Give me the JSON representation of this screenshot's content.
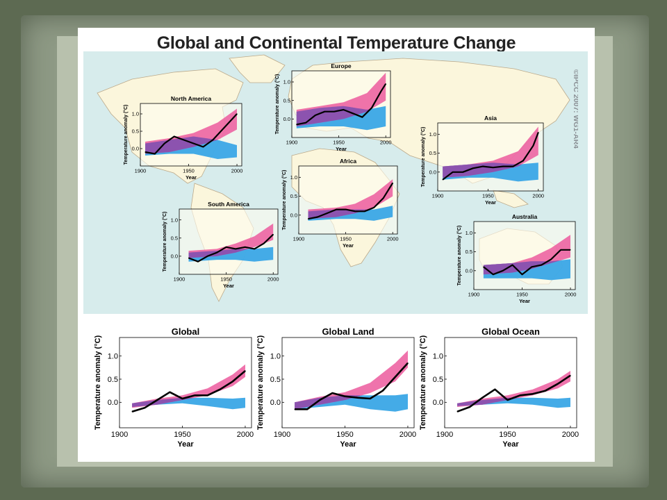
{
  "slide": {
    "title": "Global and Continental Temperature Change",
    "copyright": "©IPCC  2007: WG1-AR4"
  },
  "colors": {
    "natural": "#3aa7e6",
    "anthropogenic": "#ec5a9e",
    "observed": "#000000",
    "map_sea": "#d7ecec",
    "map_land": "#fbf6dc"
  },
  "chart_data": [
    {
      "id": "north-america",
      "type": "line",
      "title": "North America",
      "xlabel": "Year",
      "ylabel": "Temperature anomaly (°C)",
      "xlim": [
        1900,
        2005
      ],
      "ylim": [
        -0.5,
        1.3
      ],
      "yticks": [
        0.0,
        0.5,
        1.0
      ],
      "xticks": [
        1900,
        1950,
        2000
      ],
      "x": [
        1905,
        1915,
        1925,
        1935,
        1945,
        1955,
        1965,
        1975,
        1985,
        1995,
        2000
      ],
      "series": [
        {
          "name": "observed",
          "values": [
            -0.1,
            -0.15,
            0.15,
            0.35,
            0.25,
            0.15,
            0.05,
            0.25,
            0.55,
            0.85,
            1.0
          ]
        }
      ],
      "natural_band": {
        "x": [
          1905,
          1930,
          1955,
          1980,
          2000
        ],
        "lower": [
          -0.2,
          -0.15,
          -0.15,
          -0.3,
          -0.25
        ],
        "upper": [
          0.15,
          0.25,
          0.35,
          0.25,
          0.1
        ]
      },
      "anthropogenic_band": {
        "x": [
          1905,
          1930,
          1955,
          1980,
          2000
        ],
        "lower": [
          -0.15,
          -0.1,
          0.05,
          0.25,
          0.55
        ],
        "upper": [
          0.2,
          0.3,
          0.45,
          0.75,
          1.15
        ]
      }
    },
    {
      "id": "europe",
      "type": "line",
      "title": "Europe",
      "xlabel": "Year",
      "ylabel": "Temperature anomaly (°C)",
      "xlim": [
        1900,
        2005
      ],
      "ylim": [
        -0.5,
        1.3
      ],
      "yticks": [
        0.0,
        0.5,
        1.0
      ],
      "xticks": [
        1900,
        1950,
        2000
      ],
      "x": [
        1905,
        1915,
        1925,
        1935,
        1945,
        1955,
        1965,
        1975,
        1985,
        1995,
        2000
      ],
      "series": [
        {
          "name": "observed",
          "values": [
            -0.15,
            -0.1,
            0.1,
            0.2,
            0.2,
            0.25,
            0.15,
            0.05,
            0.3,
            0.75,
            0.95
          ]
        }
      ],
      "natural_band": {
        "x": [
          1905,
          1930,
          1955,
          1980,
          2000
        ],
        "lower": [
          -0.25,
          -0.2,
          -0.2,
          -0.3,
          -0.2
        ],
        "upper": [
          0.2,
          0.3,
          0.35,
          0.25,
          0.35
        ]
      },
      "anthropogenic_band": {
        "x": [
          1905,
          1930,
          1955,
          1980,
          2000
        ],
        "lower": [
          -0.2,
          -0.1,
          0.0,
          0.2,
          0.5
        ],
        "upper": [
          0.25,
          0.35,
          0.45,
          0.7,
          1.25
        ]
      }
    },
    {
      "id": "asia",
      "type": "line",
      "title": "Asia",
      "xlabel": "Year",
      "ylabel": "Temperature anomaly (°C)",
      "xlim": [
        1900,
        2005
      ],
      "ylim": [
        -0.5,
        1.3
      ],
      "yticks": [
        0.0,
        0.5,
        1.0
      ],
      "xticks": [
        1900,
        1950,
        2000
      ],
      "x": [
        1905,
        1915,
        1925,
        1935,
        1945,
        1955,
        1965,
        1975,
        1985,
        1995,
        2000
      ],
      "series": [
        {
          "name": "observed",
          "values": [
            -0.2,
            0.0,
            0.0,
            0.1,
            0.15,
            0.12,
            0.15,
            0.15,
            0.3,
            0.7,
            1.05
          ]
        }
      ],
      "natural_band": {
        "x": [
          1905,
          1930,
          1955,
          1980,
          2000
        ],
        "lower": [
          -0.2,
          -0.15,
          -0.15,
          -0.25,
          -0.2
        ],
        "upper": [
          0.15,
          0.2,
          0.25,
          0.2,
          0.25
        ]
      },
      "anthropogenic_band": {
        "x": [
          1905,
          1930,
          1955,
          1980,
          2000
        ],
        "lower": [
          -0.15,
          -0.1,
          0.0,
          0.15,
          0.45
        ],
        "upper": [
          0.15,
          0.2,
          0.3,
          0.55,
          1.2
        ]
      }
    },
    {
      "id": "africa",
      "type": "line",
      "title": "Africa",
      "xlabel": "Year",
      "ylabel": "Temperature anomaly (°C)",
      "xlim": [
        1900,
        2005
      ],
      "ylim": [
        -0.5,
        1.3
      ],
      "yticks": [
        0.0,
        0.5,
        1.0
      ],
      "xticks": [
        1900,
        1950,
        2000
      ],
      "x": [
        1910,
        1920,
        1930,
        1940,
        1950,
        1960,
        1970,
        1980,
        1990,
        2000
      ],
      "series": [
        {
          "name": "observed",
          "values": [
            -0.1,
            -0.05,
            0.05,
            0.15,
            0.15,
            0.1,
            0.1,
            0.2,
            0.45,
            0.85
          ]
        }
      ],
      "natural_band": {
        "x": [
          1910,
          1940,
          1960,
          1980,
          2000
        ],
        "lower": [
          -0.15,
          -0.1,
          -0.1,
          -0.15,
          -0.05
        ],
        "upper": [
          0.1,
          0.15,
          0.15,
          0.15,
          0.25
        ]
      },
      "anthropogenic_band": {
        "x": [
          1910,
          1940,
          1960,
          1980,
          2000
        ],
        "lower": [
          -0.1,
          -0.05,
          0.05,
          0.2,
          0.5
        ],
        "upper": [
          0.15,
          0.2,
          0.3,
          0.55,
          0.95
        ]
      }
    },
    {
      "id": "south-america",
      "type": "line",
      "title": "South America",
      "xlabel": "Year",
      "ylabel": "Temperature anomaly (°C)",
      "xlim": [
        1900,
        2005
      ],
      "ylim": [
        -0.5,
        1.3
      ],
      "yticks": [
        0.0,
        0.5,
        1.0
      ],
      "xticks": [
        1900,
        1950,
        2000
      ],
      "x": [
        1910,
        1920,
        1930,
        1940,
        1950,
        1960,
        1970,
        1980,
        1990,
        2000
      ],
      "series": [
        {
          "name": "observed",
          "values": [
            -0.05,
            -0.15,
            0.0,
            0.1,
            0.25,
            0.2,
            0.25,
            0.2,
            0.35,
            0.6
          ]
        }
      ],
      "natural_band": {
        "x": [
          1910,
          1940,
          1960,
          1980,
          2000
        ],
        "lower": [
          -0.15,
          -0.1,
          -0.1,
          -0.15,
          -0.1
        ],
        "upper": [
          0.1,
          0.15,
          0.2,
          0.2,
          0.25
        ]
      },
      "anthropogenic_band": {
        "x": [
          1910,
          1940,
          1960,
          1980,
          2000
        ],
        "lower": [
          -0.05,
          0.0,
          0.1,
          0.25,
          0.45
        ],
        "upper": [
          0.15,
          0.2,
          0.35,
          0.55,
          0.9
        ]
      }
    },
    {
      "id": "australia",
      "type": "line",
      "title": "Australia",
      "xlabel": "Year",
      "ylabel": "Temperature anomaly (°C)",
      "xlim": [
        1900,
        2005
      ],
      "ylim": [
        -0.5,
        1.3
      ],
      "yticks": [
        0.0,
        0.5,
        1.0
      ],
      "xticks": [
        1900,
        1950,
        2000
      ],
      "x": [
        1910,
        1920,
        1930,
        1940,
        1950,
        1960,
        1970,
        1980,
        1990,
        2000
      ],
      "series": [
        {
          "name": "observed",
          "values": [
            0.1,
            -0.1,
            0.0,
            0.15,
            -0.1,
            0.1,
            0.15,
            0.3,
            0.55,
            0.55
          ]
        }
      ],
      "natural_band": {
        "x": [
          1910,
          1940,
          1960,
          1980,
          2000
        ],
        "lower": [
          -0.2,
          -0.2,
          -0.2,
          -0.25,
          -0.2
        ],
        "upper": [
          0.15,
          0.2,
          0.25,
          0.25,
          0.3
        ]
      },
      "anthropogenic_band": {
        "x": [
          1910,
          1940,
          1960,
          1980,
          2000
        ],
        "lower": [
          -0.1,
          -0.05,
          0.05,
          0.2,
          0.35
        ],
        "upper": [
          0.15,
          0.2,
          0.35,
          0.6,
          0.95
        ]
      }
    },
    {
      "id": "global",
      "type": "line",
      "title": "Global",
      "xlabel": "Year",
      "ylabel": "Temperature anomaly (°C)",
      "xlim": [
        1900,
        2005
      ],
      "ylim": [
        -0.55,
        1.4
      ],
      "yticks": [
        0.0,
        0.5,
        1.0
      ],
      "xticks": [
        1900,
        1950,
        2000
      ],
      "x": [
        1910,
        1920,
        1930,
        1940,
        1950,
        1960,
        1970,
        1980,
        1990,
        2000
      ],
      "series": [
        {
          "name": "observed",
          "values": [
            -0.2,
            -0.12,
            0.05,
            0.22,
            0.08,
            0.15,
            0.15,
            0.28,
            0.45,
            0.68
          ]
        }
      ],
      "natural_band": {
        "x": [
          1910,
          1930,
          1950,
          1970,
          1990,
          2000
        ],
        "lower": [
          -0.1,
          -0.05,
          -0.02,
          -0.08,
          -0.15,
          -0.12
        ],
        "upper": [
          -0.02,
          0.05,
          0.1,
          0.1,
          0.08,
          0.1
        ]
      },
      "anthropogenic_band": {
        "x": [
          1910,
          1930,
          1950,
          1970,
          1990,
          2000
        ],
        "lower": [
          -0.12,
          -0.05,
          0.05,
          0.15,
          0.35,
          0.55
        ],
        "upper": [
          -0.02,
          0.08,
          0.15,
          0.3,
          0.6,
          0.82
        ]
      }
    },
    {
      "id": "global-land",
      "type": "line",
      "title": "Global Land",
      "xlabel": "Year",
      "ylabel": "Temperature anomaly (°C)",
      "xlim": [
        1900,
        2005
      ],
      "ylim": [
        -0.55,
        1.4
      ],
      "yticks": [
        0.0,
        0.5,
        1.0
      ],
      "xticks": [
        1900,
        1950,
        2000
      ],
      "x": [
        1910,
        1920,
        1930,
        1940,
        1950,
        1960,
        1970,
        1980,
        1990,
        2000
      ],
      "series": [
        {
          "name": "observed",
          "values": [
            -0.15,
            -0.15,
            0.05,
            0.2,
            0.13,
            0.1,
            0.08,
            0.25,
            0.55,
            0.85
          ]
        }
      ],
      "natural_band": {
        "x": [
          1910,
          1930,
          1950,
          1970,
          1990,
          2000
        ],
        "lower": [
          -0.15,
          -0.1,
          -0.05,
          -0.15,
          -0.2,
          -0.15
        ],
        "upper": [
          0.0,
          0.1,
          0.15,
          0.15,
          0.15,
          0.18
        ]
      },
      "anthropogenic_band": {
        "x": [
          1910,
          1930,
          1950,
          1970,
          1990,
          2000
        ],
        "lower": [
          -0.15,
          -0.05,
          0.05,
          0.2,
          0.45,
          0.75
        ],
        "upper": [
          0.0,
          0.12,
          0.22,
          0.42,
          0.85,
          1.12
        ]
      }
    },
    {
      "id": "global-ocean",
      "type": "line",
      "title": "Global Ocean",
      "xlabel": "Year",
      "ylabel": "Temperature anomaly (°C)",
      "xlim": [
        1900,
        2005
      ],
      "ylim": [
        -0.55,
        1.4
      ],
      "yticks": [
        0.0,
        0.5,
        1.0
      ],
      "xticks": [
        1900,
        1950,
        2000
      ],
      "x": [
        1910,
        1920,
        1930,
        1940,
        1950,
        1960,
        1970,
        1980,
        1990,
        2000
      ],
      "series": [
        {
          "name": "observed",
          "values": [
            -0.2,
            -0.1,
            0.1,
            0.28,
            0.05,
            0.15,
            0.18,
            0.25,
            0.4,
            0.58
          ]
        }
      ],
      "natural_band": {
        "x": [
          1910,
          1930,
          1950,
          1970,
          1990,
          2000
        ],
        "lower": [
          -0.08,
          -0.05,
          -0.02,
          -0.05,
          -0.12,
          -0.1
        ],
        "upper": [
          -0.02,
          0.05,
          0.1,
          0.1,
          0.08,
          0.1
        ]
      },
      "anthropogenic_band": {
        "x": [
          1910,
          1930,
          1950,
          1970,
          1990,
          2000
        ],
        "lower": [
          -0.1,
          -0.05,
          0.05,
          0.15,
          0.3,
          0.45
        ],
        "upper": [
          -0.02,
          0.08,
          0.15,
          0.28,
          0.5,
          0.68
        ]
      }
    }
  ]
}
